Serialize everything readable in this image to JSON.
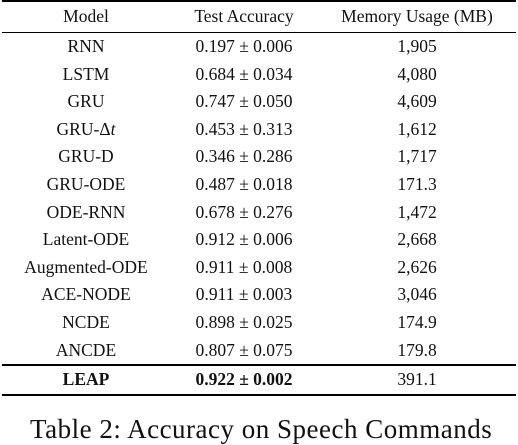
{
  "table": {
    "headers": [
      "Model",
      "Test Accuracy",
      "Memory Usage (MB)"
    ],
    "rows": [
      {
        "model": "RNN",
        "accuracy": "0.197 ± 0.006",
        "memory": "1,905"
      },
      {
        "model": "LSTM",
        "accuracy": "0.684 ± 0.034",
        "memory": "4,080"
      },
      {
        "model": "GRU",
        "accuracy": "0.747 ± 0.050",
        "memory": "4,609"
      },
      {
        "model": "GRU-Δt",
        "accuracy": "0.453 ± 0.313",
        "memory": "1,612"
      },
      {
        "model": "GRU-D",
        "accuracy": "0.346 ± 0.286",
        "memory": "1,717"
      },
      {
        "model": "GRU-ODE",
        "accuracy": "0.487 ± 0.018",
        "memory": "171.3"
      },
      {
        "model": "ODE-RNN",
        "accuracy": "0.678 ± 0.276",
        "memory": "1,472"
      },
      {
        "model": "Latent-ODE",
        "accuracy": "0.912 ± 0.006",
        "memory": "2,668"
      },
      {
        "model": "Augmented-ODE",
        "accuracy": "0.911 ± 0.008",
        "memory": "2,626"
      },
      {
        "model": "ACE-NODE",
        "accuracy": "0.911 ± 0.003",
        "memory": "3,046"
      },
      {
        "model": "NCDE",
        "accuracy": "0.898 ± 0.025",
        "memory": "174.9"
      },
      {
        "model": "ANCDE",
        "accuracy": "0.807 ± 0.075",
        "memory": "179.8"
      }
    ],
    "best_row": {
      "model": "LEAP",
      "accuracy": "0.922 ± 0.002",
      "memory": "391.1"
    }
  },
  "caption": "Table 2: Accuracy on Speech Commands"
}
